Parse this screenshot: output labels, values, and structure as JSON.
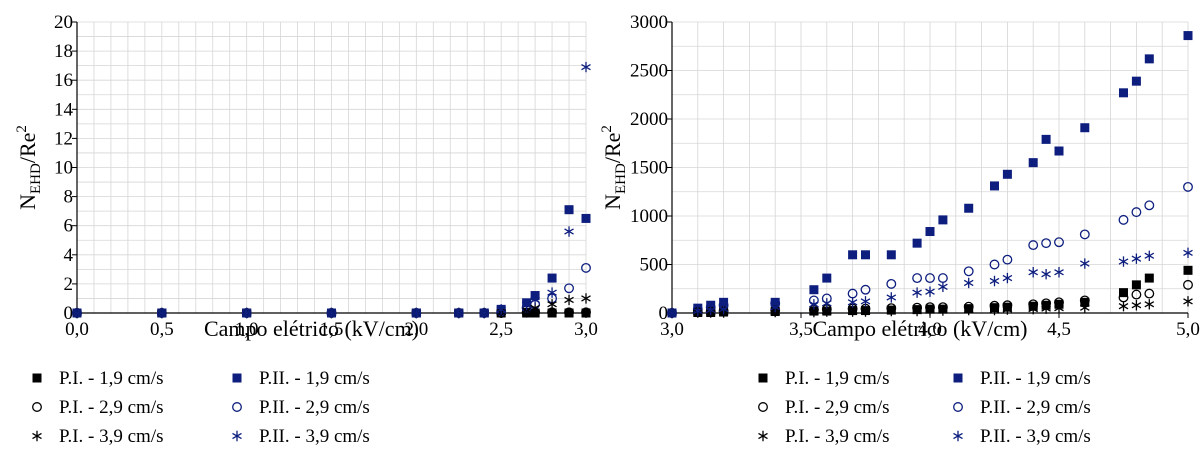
{
  "chart_data": [
    {
      "type": "scatter",
      "xlabel": "Campo elétrico (kV/cm)",
      "ylabel": {
        "main": "N",
        "sub": "EHD",
        "mid": "/Re",
        "sup": "2"
      },
      "xlim": [
        0,
        3.0
      ],
      "ylim": [
        0,
        20
      ],
      "xticks": [
        0,
        0.5,
        1.0,
        1.5,
        2.0,
        2.5,
        3.0
      ],
      "xtick_labels": [
        "0,0",
        "0,5",
        "1,0",
        "1,5",
        "2,0",
        "2,5",
        "3,0"
      ],
      "yticks": [
        0,
        2,
        4,
        6,
        8,
        10,
        12,
        14,
        16,
        18,
        20
      ],
      "ytick_labels": [
        "0",
        "2",
        "4",
        "6",
        "8",
        "10",
        "12",
        "14",
        "16",
        "18",
        "20"
      ],
      "grid": true,
      "legend_position": "bottom",
      "series": [
        {
          "name": "P.I. - 1,9 cm/s",
          "marker": "filled-square",
          "color": "#000000",
          "x": [
            0,
            0.5,
            1.0,
            1.5,
            2.0,
            2.25,
            2.4,
            2.5,
            2.65,
            2.7,
            2.8,
            2.9,
            3.0
          ],
          "y": [
            0,
            0,
            0,
            0,
            0,
            0,
            0,
            0,
            0,
            0,
            0,
            0,
            0
          ]
        },
        {
          "name": "P.II. - 1,9 cm/s",
          "marker": "filled-square",
          "color": "#0d1e7e",
          "x": [
            0,
            0.5,
            1.0,
            1.5,
            2.0,
            2.25,
            2.4,
            2.5,
            2.65,
            2.7,
            2.8,
            2.9,
            3.0
          ],
          "y": [
            0,
            0,
            0,
            0,
            0,
            0,
            0,
            0.25,
            0.7,
            1.2,
            2.4,
            7.1,
            6.5
          ]
        },
        {
          "name": "P.I. - 2,9 cm/s",
          "marker": "open-circle",
          "color": "#000000",
          "x": [
            0,
            0.5,
            1.0,
            1.5,
            2.0,
            2.25,
            2.4,
            2.5,
            2.65,
            2.7,
            2.8,
            2.9,
            3.0
          ],
          "y": [
            0,
            0,
            0,
            0,
            0,
            0,
            0,
            0,
            0.02,
            0.05,
            0.05,
            0.05,
            0.05
          ]
        },
        {
          "name": "P.II. - 2,9 cm/s",
          "marker": "open-circle",
          "color": "#0d1e7e",
          "x": [
            0,
            0.5,
            1.0,
            1.5,
            2.0,
            2.25,
            2.4,
            2.5,
            2.65,
            2.7,
            2.8,
            2.9,
            3.0
          ],
          "y": [
            0,
            0,
            0,
            0,
            0,
            0,
            0,
            0.1,
            0.35,
            0.6,
            1.0,
            1.7,
            3.1
          ]
        },
        {
          "name": "P.I. - 3,9 cm/s",
          "marker": "asterisk",
          "color": "#000000",
          "x": [
            0,
            0.5,
            1.0,
            1.5,
            2.0,
            2.25,
            2.4,
            2.5,
            2.65,
            2.7,
            2.8,
            2.9,
            3.0
          ],
          "y": [
            0,
            0,
            0,
            0,
            0,
            0,
            0,
            0.05,
            0.2,
            0.35,
            0.6,
            0.9,
            1.0
          ]
        },
        {
          "name": "P.II. - 3,9 cm/s",
          "marker": "asterisk",
          "color": "#0d1e7e",
          "x": [
            0,
            0.5,
            1.0,
            1.5,
            2.0,
            2.25,
            2.4,
            2.5,
            2.65,
            2.7,
            2.8,
            2.9,
            3.0
          ],
          "y": [
            0,
            0,
            0,
            0,
            0,
            0,
            0,
            0.25,
            0.55,
            0.9,
            1.4,
            5.6,
            16.9
          ]
        }
      ]
    },
    {
      "type": "scatter",
      "xlabel": "Campo elétrico (kV/cm)",
      "ylabel": {
        "main": "N",
        "sub": "EHD",
        "mid": "/Re",
        "sup": "2"
      },
      "xlim": [
        3.0,
        5.0
      ],
      "ylim": [
        0,
        3000
      ],
      "xticks": [
        3.0,
        3.5,
        4.0,
        4.5,
        5.0
      ],
      "xtick_labels": [
        "3,0",
        "3,5",
        "4,0",
        "4,5",
        "5,0"
      ],
      "yticks": [
        0,
        500,
        1000,
        1500,
        2000,
        2500,
        3000
      ],
      "ytick_labels": [
        "0",
        "500",
        "1000",
        "1500",
        "2000",
        "2500",
        "3000"
      ],
      "grid": true,
      "legend_position": "bottom",
      "series": [
        {
          "name": "P.I. - 1,9 cm/s",
          "marker": "filled-square",
          "color": "#000000",
          "x": [
            3.0,
            3.1,
            3.15,
            3.2,
            3.4,
            3.55,
            3.6,
            3.7,
            3.75,
            3.85,
            3.95,
            4.0,
            4.05,
            4.15,
            4.25,
            4.3,
            4.4,
            4.45,
            4.5,
            4.6,
            4.75,
            4.8,
            4.85,
            5.0
          ],
          "y": [
            0,
            5,
            5,
            10,
            15,
            20,
            20,
            25,
            25,
            30,
            35,
            40,
            40,
            45,
            55,
            60,
            70,
            80,
            90,
            110,
            210,
            290,
            360,
            440
          ]
        },
        {
          "name": "P.II. - 1,9 cm/s",
          "marker": "filled-square",
          "color": "#0d1e7e",
          "x": [
            3.0,
            3.1,
            3.15,
            3.2,
            3.4,
            3.55,
            3.6,
            3.7,
            3.75,
            3.85,
            3.95,
            4.0,
            4.05,
            4.15,
            4.25,
            4.3,
            4.4,
            4.45,
            4.5,
            4.6,
            4.75,
            4.8,
            4.85,
            5.0
          ],
          "y": [
            0,
            50,
            80,
            110,
            110,
            240,
            360,
            600,
            600,
            600,
            720,
            840,
            960,
            1080,
            1310,
            1430,
            1550,
            1790,
            1670,
            1910,
            2270,
            2390,
            2620,
            2860
          ]
        },
        {
          "name": "P.I. - 2,9 cm/s",
          "marker": "open-circle",
          "color": "#000000",
          "x": [
            3.0,
            3.1,
            3.15,
            3.2,
            3.4,
            3.55,
            3.6,
            3.7,
            3.75,
            3.85,
            3.95,
            4.0,
            4.05,
            4.15,
            4.25,
            4.3,
            4.4,
            4.45,
            4.5,
            4.6,
            4.75,
            4.8,
            4.85,
            5.0
          ],
          "y": [
            0,
            10,
            15,
            20,
            30,
            35,
            40,
            45,
            45,
            50,
            55,
            60,
            60,
            65,
            75,
            80,
            90,
            100,
            110,
            130,
            160,
            190,
            200,
            290
          ]
        },
        {
          "name": "P.II. - 2,9 cm/s",
          "marker": "open-circle",
          "color": "#0d1e7e",
          "x": [
            3.0,
            3.1,
            3.15,
            3.2,
            3.4,
            3.55,
            3.6,
            3.7,
            3.75,
            3.85,
            3.95,
            4.0,
            4.05,
            4.15,
            4.25,
            4.3,
            4.4,
            4.45,
            4.5,
            4.6,
            4.75,
            4.8,
            4.85,
            5.0
          ],
          "y": [
            0,
            40,
            60,
            80,
            100,
            130,
            150,
            200,
            240,
            300,
            360,
            360,
            360,
            430,
            500,
            550,
            700,
            720,
            730,
            810,
            960,
            1040,
            1110,
            1300
          ]
        },
        {
          "name": "P.I. - 3,9 cm/s",
          "marker": "asterisk",
          "color": "#000000",
          "x": [
            3.0,
            3.1,
            3.15,
            3.2,
            3.4,
            3.55,
            3.6,
            3.7,
            3.75,
            3.85,
            3.95,
            4.0,
            4.05,
            4.15,
            4.25,
            4.3,
            4.4,
            4.45,
            4.5,
            4.6,
            4.75,
            4.8,
            4.85,
            5.0
          ],
          "y": [
            0,
            5,
            5,
            5,
            10,
            10,
            15,
            15,
            15,
            20,
            20,
            25,
            25,
            30,
            30,
            35,
            40,
            45,
            50,
            55,
            70,
            80,
            90,
            120
          ]
        },
        {
          "name": "P.II. - 3,9 cm/s",
          "marker": "asterisk",
          "color": "#0d1e7e",
          "x": [
            3.0,
            3.1,
            3.15,
            3.2,
            3.4,
            3.55,
            3.6,
            3.7,
            3.75,
            3.85,
            3.95,
            4.0,
            4.05,
            4.15,
            4.25,
            4.3,
            4.4,
            4.45,
            4.5,
            4.6,
            4.75,
            4.8,
            4.85,
            5.0
          ],
          "y": [
            0,
            20,
            30,
            40,
            60,
            90,
            100,
            110,
            120,
            160,
            210,
            220,
            270,
            310,
            330,
            360,
            420,
            400,
            420,
            510,
            530,
            560,
            590,
            620
          ]
        }
      ]
    }
  ]
}
